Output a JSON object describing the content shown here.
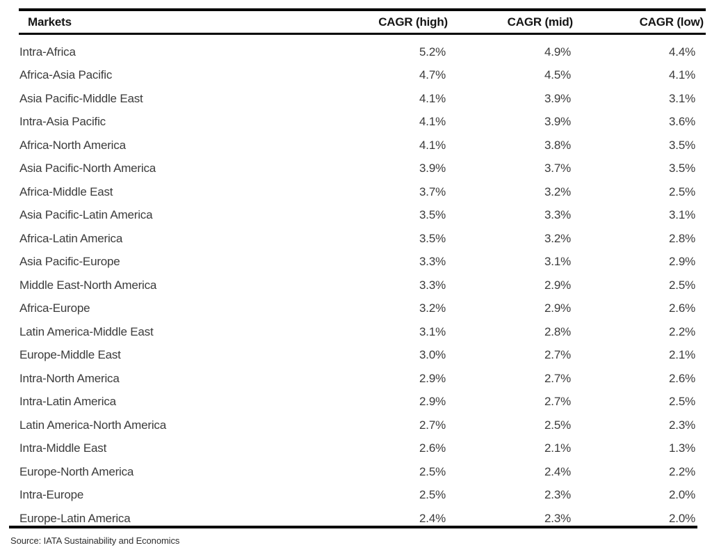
{
  "chart_data": {
    "type": "table",
    "columns": [
      "Markets",
      "CAGR (high)",
      "CAGR (mid)",
      "CAGR (low)"
    ],
    "rows": [
      [
        "Intra-Africa",
        "5.2%",
        "4.9%",
        "4.4%"
      ],
      [
        "Africa-Asia Pacific",
        "4.7%",
        "4.5%",
        "4.1%"
      ],
      [
        "Asia Pacific-Middle East",
        "4.1%",
        "3.9%",
        "3.1%"
      ],
      [
        "Intra-Asia Pacific",
        "4.1%",
        "3.9%",
        "3.6%"
      ],
      [
        "Africa-North America",
        "4.1%",
        "3.8%",
        "3.5%"
      ],
      [
        "Asia Pacific-North America",
        "3.9%",
        "3.7%",
        "3.5%"
      ],
      [
        "Africa-Middle East",
        "3.7%",
        "3.2%",
        "2.5%"
      ],
      [
        "Asia Pacific-Latin America",
        "3.5%",
        "3.3%",
        "3.1%"
      ],
      [
        "Africa-Latin America",
        "3.5%",
        "3.2%",
        "2.8%"
      ],
      [
        "Asia Pacific-Europe",
        "3.3%",
        "3.1%",
        "2.9%"
      ],
      [
        "Middle East-North America",
        "3.3%",
        "2.9%",
        "2.5%"
      ],
      [
        "Africa-Europe",
        "3.2%",
        "2.9%",
        "2.6%"
      ],
      [
        "Latin America-Middle East",
        "3.1%",
        "2.8%",
        "2.2%"
      ],
      [
        "Europe-Middle East",
        "3.0%",
        "2.7%",
        "2.1%"
      ],
      [
        "Intra-North America",
        "2.9%",
        "2.7%",
        "2.6%"
      ],
      [
        "Intra-Latin America",
        "2.9%",
        "2.7%",
        "2.5%"
      ],
      [
        "Latin America-North America",
        "2.7%",
        "2.5%",
        "2.3%"
      ],
      [
        "Intra-Middle East",
        "2.6%",
        "2.1%",
        "1.3%"
      ],
      [
        "Europe-North America",
        "2.5%",
        "2.4%",
        "2.2%"
      ],
      [
        "Intra-Europe",
        "2.5%",
        "2.3%",
        "2.0%"
      ],
      [
        "Europe-Latin America",
        "2.4%",
        "2.3%",
        "2.0%"
      ]
    ],
    "layout": {
      "numeric_columns_alignment": "right",
      "grid": "horizontal-rules-only"
    }
  },
  "source_note": "Source: IATA Sustainability and Economics",
  "colors": {
    "background": "#ffffff",
    "rule_line": "#000000",
    "header_text": "#161616",
    "body_text": "#3b3b3b",
    "source_text": "#2e2e2e"
  }
}
